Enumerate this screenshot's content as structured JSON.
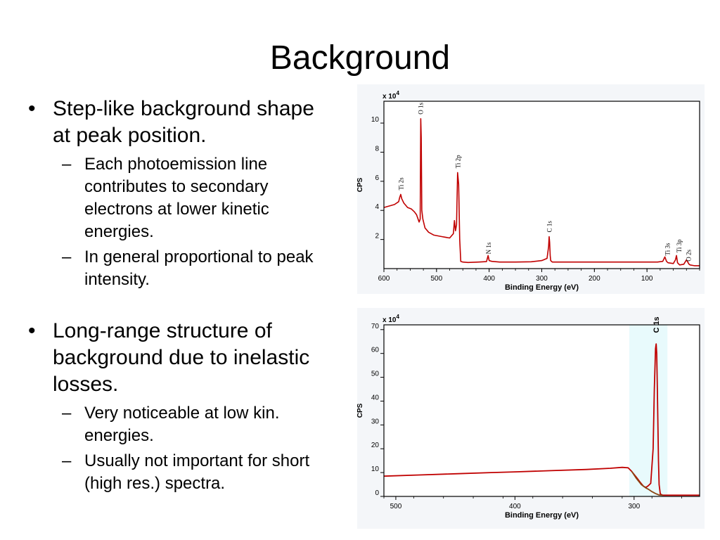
{
  "slide": {
    "title": "Background",
    "bullets": [
      {
        "text": "Step-like background shape at peak position.",
        "lines": [
          "Step-like background shape",
          "at peak position."
        ],
        "subs": [
          {
            "text": "Each photoemission line contributes to secondary electrons at lower kinetic energies.",
            "lines": [
              "Each photoemission line",
              "contributes to secondary",
              "electrons at lower kinetic",
              "energies."
            ]
          },
          {
            "text": "In general proportional to peak intensity.",
            "lines": [
              "In general proportional to peak",
              "intensity."
            ]
          }
        ]
      },
      {
        "text": "Long-range structure of background due to inelastic losses.",
        "lines": [
          "Long-range structure of",
          "background due to inelastic",
          "losses."
        ],
        "subs": [
          {
            "text": "Very noticeable at low kin. energies.",
            "lines": [
              "Very noticeable at low kin.",
              "energies."
            ]
          },
          {
            "text": "Usually not important for short (high res.) spectra.",
            "lines": [
              "Usually not important for short",
              "(high res.) spectra."
            ]
          }
        ]
      }
    ]
  },
  "chart_data": [
    {
      "type": "line",
      "xlabel": "Binding Energy (eV)",
      "ylabel": "CPS",
      "y_multiplier": "x 10^4",
      "xlim": [
        600,
        0
      ],
      "ylim": [
        0,
        11.5
      ],
      "xticks": [
        600,
        500,
        400,
        300,
        200,
        100
      ],
      "yticks": [
        2,
        4,
        6,
        8,
        10
      ],
      "series": [
        {
          "color": "#c00000",
          "x": [
            600,
            590,
            580,
            572,
            570,
            568,
            566,
            562,
            555,
            548,
            542,
            538,
            533,
            531,
            530,
            529,
            528,
            526,
            522,
            515,
            505,
            490,
            475,
            468,
            466,
            464,
            462,
            460,
            458,
            456,
            454,
            450,
            440,
            420,
            405,
            402,
            400,
            395,
            380,
            350,
            320,
            300,
            290,
            287,
            286,
            285,
            284,
            283,
            280,
            270,
            250,
            220,
            200,
            180,
            160,
            140,
            120,
            100,
            80,
            70,
            66,
            63,
            60,
            50,
            46,
            44,
            42,
            38,
            30,
            25,
            20,
            18,
            10,
            0
          ],
          "y": [
            4.2,
            4.3,
            4.4,
            4.6,
            4.9,
            5.1,
            4.8,
            4.5,
            4.2,
            4.1,
            3.9,
            3.7,
            3.2,
            3.4,
            10.3,
            9.0,
            4.0,
            3.4,
            2.8,
            2.5,
            2.3,
            2.2,
            2.1,
            2.4,
            3.3,
            2.6,
            3.0,
            6.6,
            5.8,
            2.0,
            0.5,
            0.45,
            0.42,
            0.45,
            0.48,
            0.9,
            0.55,
            0.5,
            0.45,
            0.45,
            0.47,
            0.55,
            0.7,
            1.5,
            2.2,
            1.8,
            0.9,
            0.55,
            0.45,
            0.45,
            0.45,
            0.45,
            0.45,
            0.45,
            0.45,
            0.45,
            0.45,
            0.45,
            0.45,
            0.5,
            0.8,
            0.5,
            0.4,
            0.35,
            0.6,
            0.9,
            0.4,
            0.25,
            0.3,
            0.6,
            0.3,
            0.25,
            0.2,
            0.2
          ]
        }
      ],
      "annotations": [
        {
          "text": "O 1s",
          "x": 530,
          "y": 10.5
        },
        {
          "text": "Ti 2s",
          "x": 567,
          "y": 5.3
        },
        {
          "text": "Ti 2p",
          "x": 459,
          "y": 6.8
        },
        {
          "text": "N 1s",
          "x": 401,
          "y": 0.9
        },
        {
          "text": "C 1s",
          "x": 285,
          "y": 2.4
        },
        {
          "text": "Ti 3s",
          "x": 61,
          "y": 0.8
        },
        {
          "text": "Ti 3p",
          "x": 39,
          "y": 1.0
        },
        {
          "text": "O 2s",
          "x": 21,
          "y": 0.4
        }
      ]
    },
    {
      "type": "line",
      "xlabel": "Binding Energy (eV)",
      "ylabel": "CPS",
      "y_multiplier": "x 10^4",
      "xlim": [
        510,
        245
      ],
      "ylim": [
        0,
        72
      ],
      "xticks": [
        500,
        400,
        300
      ],
      "yticks": [
        0,
        10,
        20,
        30,
        40,
        50,
        60,
        70
      ],
      "highlight": {
        "x_from": 304,
        "x_to": 272,
        "color": "#e8fafc"
      },
      "series": [
        {
          "color": "#c00000",
          "x": [
            510,
            480,
            450,
            420,
            400,
            370,
            340,
            320,
            310,
            305,
            302,
            298,
            295,
            292,
            290,
            288,
            286,
            284,
            283,
            282,
            281.5,
            281,
            280.5,
            279.5,
            279,
            278,
            276,
            270,
            245
          ],
          "y": [
            8.5,
            9.0,
            9.5,
            10.0,
            10.3,
            10.8,
            11.3,
            11.8,
            12.2,
            12.0,
            10.5,
            8.0,
            6.0,
            4.2,
            3.8,
            4.5,
            5.5,
            20,
            45,
            62,
            64,
            60,
            45,
            15,
            5,
            1.0,
            0.5,
            0.5,
            0.5
          ]
        },
        {
          "color": "#8b4513",
          "x": [
            302,
            298,
            294,
            290,
            288,
            285,
            282,
            279,
            276
          ],
          "y": [
            10.5,
            7.5,
            5.0,
            3.5,
            3.0,
            2.0,
            1.2,
            0.6,
            0.5
          ]
        }
      ],
      "annotations": [
        {
          "text": "C 1s",
          "x": 281,
          "y": 68
        }
      ]
    }
  ]
}
